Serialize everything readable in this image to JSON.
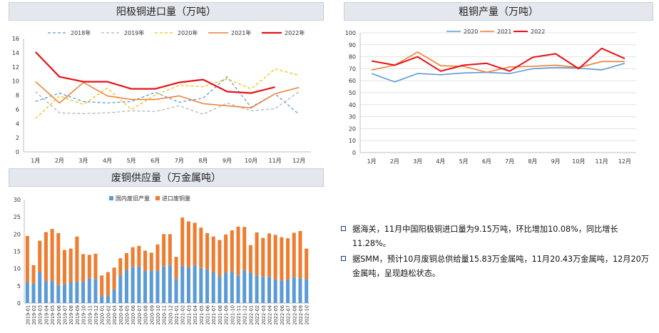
{
  "charts": {
    "import": {
      "title": "阳极铜进口量（万吨）"
    },
    "production": {
      "title": "粗铜产量（万吨）"
    },
    "scrap": {
      "title": "废铜供应量（万金属吨）"
    }
  },
  "notes": [
    "据海关，11月中国阳极铜进口量为9.15万吨，环比增加10.08%，同比增长11.28%。",
    "据SMM，预计10月废铜总供给量15.83万金属吨，11月20.43万金属吨，12月20万金属吨，呈现趋松状态。"
  ],
  "chart_data": [
    {
      "id": "import",
      "type": "line",
      "title": "阳极铜进口量（万吨）",
      "categories": [
        "1月",
        "2月",
        "3月",
        "4月",
        "5月",
        "6月",
        "7月",
        "8月",
        "9月",
        "10月",
        "11月",
        "12月"
      ],
      "ylim": [
        0,
        16
      ],
      "yticks": [
        0,
        2,
        4,
        6,
        8,
        10,
        12,
        14,
        16
      ],
      "legend_position": "top",
      "series": [
        {
          "name": "2018年",
          "color": "#5b9bd5",
          "style": "dashed",
          "width": 1.3,
          "values": [
            7.1,
            8.3,
            7.1,
            6.9,
            7.1,
            8.4,
            7.0,
            7.6,
            10.6,
            6.3,
            8.2,
            5.3
          ]
        },
        {
          "name": "2019年",
          "color": "#b4b4b4",
          "style": "dashed",
          "width": 1.3,
          "values": [
            8.5,
            5.5,
            5.4,
            5.5,
            5.8,
            5.7,
            6.5,
            5.3,
            6.9,
            5.8,
            6.1,
            8.5
          ]
        },
        {
          "name": "2020年",
          "color": "#f5c000",
          "style": "dashed",
          "width": 1.3,
          "values": [
            4.7,
            7.9,
            6.7,
            9.0,
            6.0,
            8.0,
            9.4,
            9.2,
            10.3,
            8.9,
            11.7,
            10.8
          ]
        },
        {
          "name": "2021年",
          "color": "#ed7d31",
          "style": "solid",
          "width": 1.5,
          "values": [
            9.9,
            6.9,
            9.8,
            7.9,
            7.4,
            7.4,
            7.9,
            6.8,
            6.5,
            6.2,
            8.2,
            9.1
          ]
        },
        {
          "name": "2022年",
          "color": "#e8111a",
          "style": "solid",
          "width": 2.2,
          "values": [
            14.1,
            10.6,
            9.9,
            9.9,
            8.9,
            8.9,
            9.8,
            10.2,
            8.5,
            8.3,
            9.15,
            null
          ]
        }
      ]
    },
    {
      "id": "production",
      "type": "line",
      "title": "粗铜产量（万吨）",
      "categories": [
        "1月",
        "2月",
        "3月",
        "4月",
        "5月",
        "6月",
        "7月",
        "8月",
        "9月",
        "10月",
        "11月",
        "12月"
      ],
      "ylim": [
        0,
        100
      ],
      "yticks": [
        0,
        10,
        20,
        30,
        40,
        50,
        60,
        70,
        80,
        90,
        100
      ],
      "legend_position": "top-left",
      "series": [
        {
          "name": "2020",
          "color": "#5b9bd5",
          "style": "solid",
          "width": 1.6,
          "values": [
            66,
            59,
            66,
            65,
            66.5,
            67,
            66,
            70,
            71,
            70.5,
            69,
            74.5
          ]
        },
        {
          "name": "2021",
          "color": "#ed7d31",
          "style": "solid",
          "width": 1.6,
          "values": [
            69,
            73,
            84,
            72.5,
            72,
            67,
            71.5,
            72,
            73,
            71,
            76,
            76
          ]
        },
        {
          "name": "2022",
          "color": "#e8111a",
          "style": "solid",
          "width": 2.0,
          "values": [
            76.5,
            73,
            80,
            68,
            73,
            74.5,
            68,
            79.5,
            82.5,
            70,
            87,
            78.5
          ]
        }
      ]
    },
    {
      "id": "scrap",
      "type": "bar",
      "stacked": true,
      "title": "废铜供应量（万金属吨）",
      "ylim": [
        0,
        30
      ],
      "yticks": [
        0,
        5,
        10,
        15,
        20,
        25,
        30
      ],
      "legend_position": "top",
      "categories": [
        "2019-01",
        "2019-02",
        "2019-03",
        "2019-04",
        "2019-05",
        "2019-06",
        "2019-07",
        "2019-08",
        "2019-09",
        "2019-10",
        "2019-11",
        "2019-12",
        "2020-01",
        "2020-02",
        "2020-03",
        "2020-04",
        "2020-05",
        "2020-06",
        "2020-07",
        "2020-08",
        "2020-09",
        "2020-10",
        "2020-11",
        "2020-12",
        "2021-01",
        "2021-02",
        "2021-03",
        "2021-04",
        "2021-05",
        "2021-06",
        "2021-07",
        "2021-08",
        "2021-09",
        "2021-10",
        "2021-11",
        "2021-12",
        "2022-01",
        "2022-02",
        "2022-03",
        "2022-04",
        "2022-05",
        "2022-06",
        "2022-07",
        "2022-08",
        "2022-09",
        "2022-10"
      ],
      "tick_labels": [
        "2019-01",
        "2019-02",
        "2019-03",
        "2019-04",
        "2019-05",
        "2019-06",
        "2019-07",
        "2019-08",
        "2019-09",
        "2019-10",
        "2019-11",
        "2019-12",
        "2020-01",
        "2020-02",
        "2020-03",
        "2020-04",
        "2020-05",
        "2020-06",
        "2020-07",
        "2020-08",
        "2020-09",
        "2020-10",
        "2020-11",
        "2020-12",
        "2021-01",
        "2021-02",
        "2021-03",
        "2021-04",
        "2021-05",
        "2021-06",
        "2021-07",
        "2021-08",
        "2021-09",
        "2021-10",
        "2021-11",
        "2021-12",
        "2022-01",
        "2022-02",
        "2022-03",
        "2022-04",
        "2022-05",
        "2022-06",
        "2022-07",
        "2022-08",
        "2022-09",
        "2022-10"
      ],
      "series": [
        {
          "name": "国内废旧产量",
          "color": "#5b9bd5",
          "values": [
            6.0,
            5.7,
            9.0,
            6.4,
            6.4,
            5.2,
            5.4,
            6.1,
            6.2,
            6.1,
            7.2,
            7.0,
            2.0,
            2.2,
            4.0,
            8.0,
            9.6,
            10.4,
            10.6,
            9.3,
            9.4,
            9.4,
            10.6,
            11.0,
            7.0,
            10.8,
            10.4,
            11.0,
            10.2,
            9.8,
            9.0,
            7.8,
            8.8,
            9.2,
            8.0,
            9.6,
            8.8,
            8.0,
            7.6,
            7.6,
            6.9,
            6.5,
            6.7,
            7.6,
            7.2,
            7.0
          ]
        },
        {
          "name": "进口废铜量",
          "color": "#ed7d31",
          "values": [
            13.5,
            5.3,
            9.1,
            14.2,
            15.1,
            15.1,
            10.0,
            9.7,
            13.1,
            8.1,
            6.8,
            7.3,
            6.0,
            6.8,
            6.3,
            5.0,
            4.9,
            5.8,
            6.0,
            5.9,
            5.2,
            7.6,
            9.4,
            9.0,
            6.4,
            14.0,
            13.3,
            12.3,
            11.7,
            10.5,
            10.3,
            10.5,
            11.1,
            11.9,
            14.2,
            12.5,
            8.0,
            12.5,
            11.3,
            12.6,
            12.9,
            12.6,
            12.1,
            12.8,
            13.7,
            8.8
          ]
        }
      ]
    }
  ]
}
